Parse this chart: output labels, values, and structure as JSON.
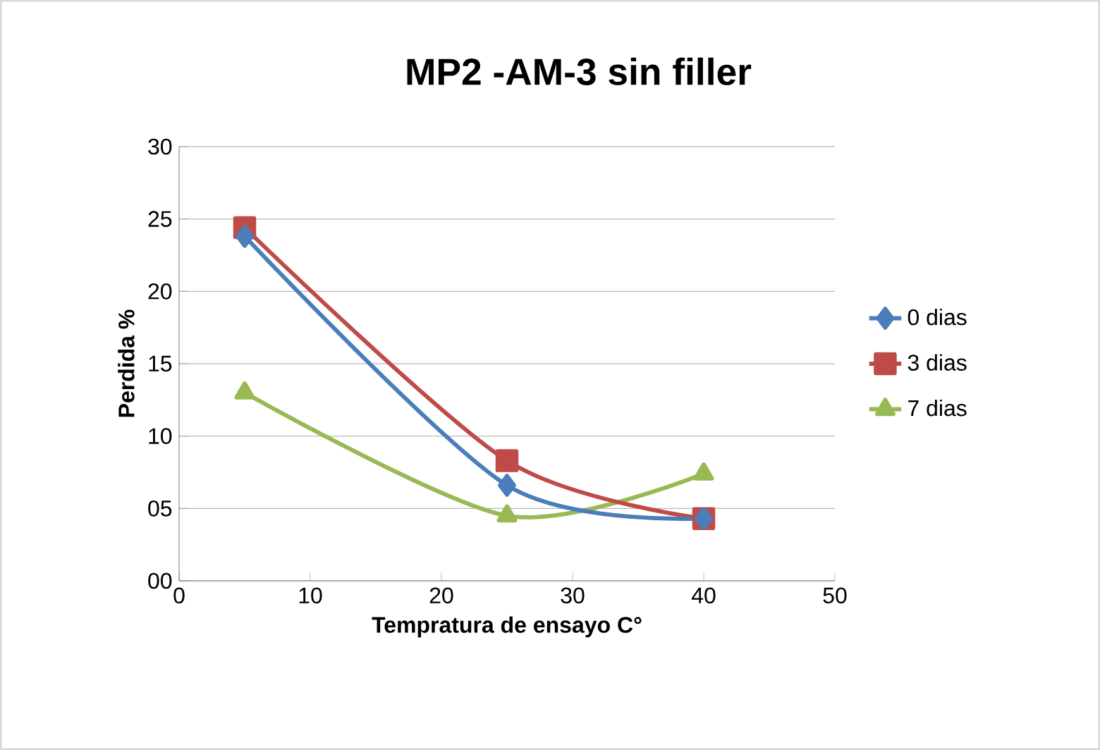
{
  "chart_data": {
    "type": "line",
    "title": "MP2 -AM-3 sin filler",
    "xlabel": "Tempratura de ensayo C°",
    "ylabel": "Perdida %",
    "x": [
      5,
      25,
      40
    ],
    "series": [
      {
        "name": "0 dias",
        "color": "#4a7ebb",
        "marker": "diamond",
        "values": [
          23.8,
          6.6,
          4.3
        ]
      },
      {
        "name": "3 dias",
        "color": "#be4b48",
        "marker": "square",
        "values": [
          24.4,
          8.3,
          4.3
        ]
      },
      {
        "name": "7 dias",
        "color": "#98b954",
        "marker": "triangle",
        "values": [
          13.0,
          4.5,
          7.4
        ]
      }
    ],
    "xlim": [
      0,
      50
    ],
    "xticks": [
      0,
      10,
      20,
      30,
      40,
      50
    ],
    "ylim": [
      0,
      30
    ],
    "yticks": [
      {
        "value": 0,
        "label": "00"
      },
      {
        "value": 5,
        "label": "05"
      },
      10,
      15,
      20,
      25,
      30
    ],
    "grid": "y",
    "legend": "right",
    "line_style": "solid"
  }
}
